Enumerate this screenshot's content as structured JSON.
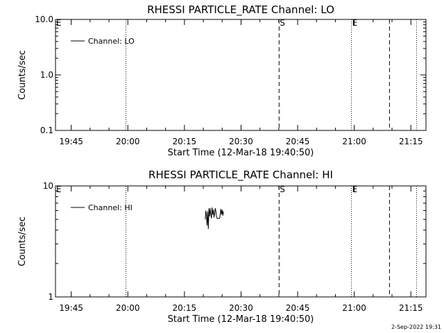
{
  "chart_data": [
    {
      "type": "line",
      "title": "RHESSI PARTICLE_RATE Channel: LO",
      "xlabel": "Start Time (12-Mar-18 19:40:50)",
      "ylabel": "Counts/sec",
      "yscale": "log",
      "ylim": [
        0.1,
        10.0
      ],
      "xlim": [
        "19:40:50",
        "21:19:00"
      ],
      "x_ticks": [
        "19:45",
        "20:00",
        "20:15",
        "20:30",
        "20:45",
        "21:00",
        "21:15"
      ],
      "y_ticks": [
        "0.1",
        "1.0",
        "10.0"
      ],
      "legend": {
        "label": "Channel: LO",
        "position": "top-left"
      },
      "series": [
        {
          "name": "Channel: LO",
          "x": [],
          "y": []
        }
      ],
      "event_markers": [
        {
          "time": "19:40:50",
          "label": "E",
          "style": "none"
        },
        {
          "time": "19:59:30",
          "label": "",
          "style": "dotted"
        },
        {
          "time": "20:40:05",
          "label": "S",
          "style": "dashed"
        },
        {
          "time": "20:59:15",
          "label": "E",
          "style": "dotted"
        },
        {
          "time": "21:09:20",
          "label": "",
          "style": "dashed"
        },
        {
          "time": "21:16:30",
          "label": "",
          "style": "dotted"
        }
      ]
    },
    {
      "type": "line",
      "title": "RHESSI PARTICLE_RATE Channel: HI",
      "xlabel": "Start Time (12-Mar-18 19:40:50)",
      "ylabel": "Counts/sec",
      "yscale": "log",
      "ylim": [
        1,
        10
      ],
      "xlim": [
        "19:40:50",
        "21:19:00"
      ],
      "x_ticks": [
        "19:45",
        "20:00",
        "20:15",
        "20:30",
        "20:45",
        "21:00",
        "21:15"
      ],
      "y_ticks": [
        "1",
        "10"
      ],
      "legend": {
        "label": "Channel: HI",
        "position": "top-left"
      },
      "series": [
        {
          "name": "Channel: HI",
          "x": [
            "20:20:30",
            "20:20:40",
            "20:20:50",
            "20:21:00",
            "20:21:10",
            "20:21:20",
            "20:21:30",
            "20:21:40",
            "20:21:50",
            "20:22:00",
            "20:22:10",
            "20:22:20",
            "20:22:30",
            "20:22:40",
            "20:22:50",
            "20:23:00",
            "20:23:10",
            "20:23:20",
            "20:23:30",
            "20:23:40",
            "20:23:50",
            "20:24:00",
            "20:24:10",
            "20:24:20",
            "20:24:30",
            "20:24:40",
            "20:24:50",
            "20:25:00",
            "20:25:10",
            "20:25:20"
          ],
          "y": [
            5.0,
            6.0,
            5.4,
            4.4,
            5.9,
            4.1,
            6.3,
            5.3,
            6.3,
            5.6,
            5.1,
            6.4,
            5.5,
            6.1,
            5.2,
            5.6,
            6.3,
            5.9,
            5.3,
            5.1,
            5.1,
            5.1,
            5.1,
            5.1,
            5.6,
            6.2,
            5.5,
            6.1,
            5.4,
            5.9
          ]
        }
      ],
      "event_markers": [
        {
          "time": "19:40:50",
          "label": "E",
          "style": "none"
        },
        {
          "time": "19:59:30",
          "label": "",
          "style": "dotted"
        },
        {
          "time": "20:40:05",
          "label": "S",
          "style": "dashed"
        },
        {
          "time": "20:59:15",
          "label": "E",
          "style": "dotted"
        },
        {
          "time": "21:09:20",
          "label": "",
          "style": "dashed"
        },
        {
          "time": "21:16:30",
          "label": "",
          "style": "dotted"
        }
      ]
    }
  ],
  "footer": {
    "date_stamp": "2-Sep-2022 19:31"
  }
}
